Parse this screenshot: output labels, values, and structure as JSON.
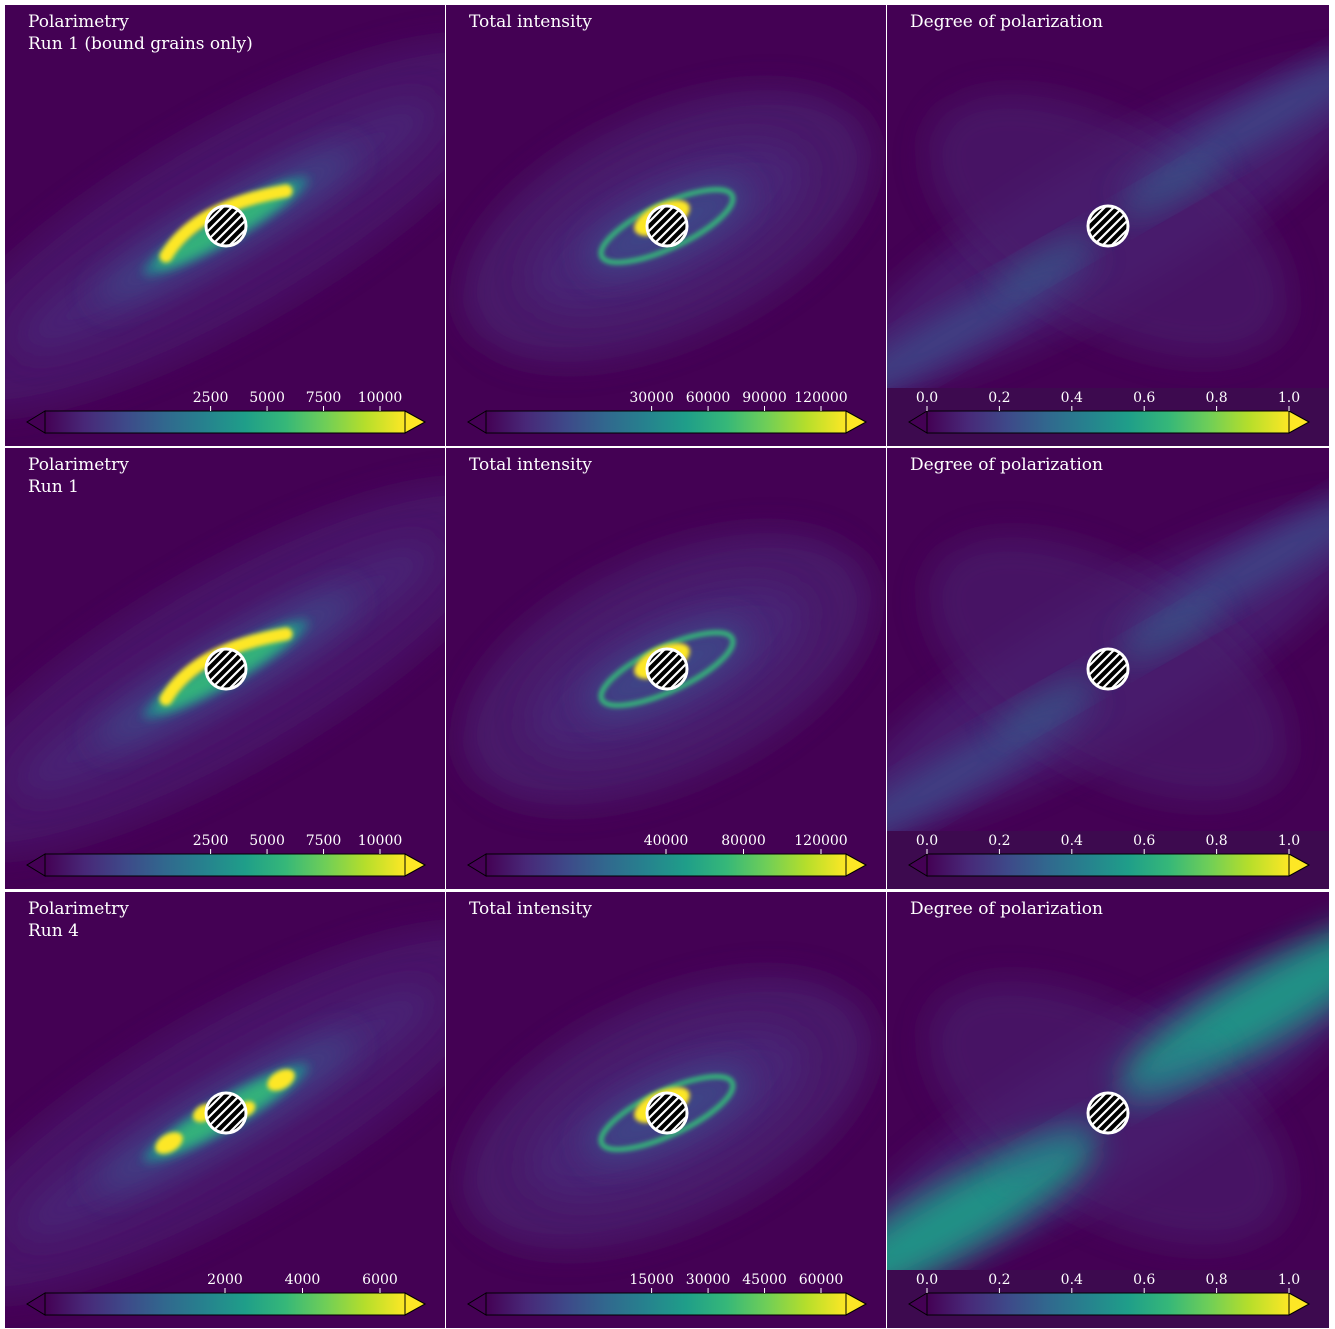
{
  "colormap": [
    "#440154",
    "#482878",
    "#3e4989",
    "#31688e",
    "#26828e",
    "#1f9e89",
    "#35b779",
    "#6ece58",
    "#b5de2b",
    "#fde725"
  ],
  "rows": [
    {
      "panels": [
        {
          "title_line1": "Polarimetry",
          "title_line2": "Run 1 (bound grains only)",
          "kind": "polarimetry",
          "colorbar": {
            "ticks": [
              "2500",
              "5000",
              "7500",
              "10000"
            ]
          }
        },
        {
          "title_line1": "Total intensity",
          "title_line2": "",
          "kind": "intensity",
          "colorbar": {
            "ticks": [
              "30000",
              "60000",
              "90000",
              "120000"
            ]
          }
        },
        {
          "title_line1": "Degree of polarization",
          "title_line2": "",
          "kind": "degree",
          "colorbar": {
            "ticks": [
              "0.0",
              "0.2",
              "0.4",
              "0.6",
              "0.8",
              "1.0"
            ]
          }
        }
      ]
    },
    {
      "panels": [
        {
          "title_line1": "Polarimetry",
          "title_line2": "Run 1",
          "kind": "polarimetry",
          "colorbar": {
            "ticks": [
              "2500",
              "5000",
              "7500",
              "10000"
            ]
          }
        },
        {
          "title_line1": "Total intensity",
          "title_line2": "",
          "kind": "intensity",
          "colorbar": {
            "ticks": [
              "40000",
              "80000",
              "120000"
            ]
          }
        },
        {
          "title_line1": "Degree of polarization",
          "title_line2": "",
          "kind": "degree",
          "colorbar": {
            "ticks": [
              "0.0",
              "0.2",
              "0.4",
              "0.6",
              "0.8",
              "1.0"
            ]
          }
        }
      ]
    },
    {
      "panels": [
        {
          "title_line1": "Polarimetry",
          "title_line2": "Run 4",
          "kind": "polarimetry-split",
          "colorbar": {
            "ticks": [
              "2000",
              "4000",
              "6000"
            ]
          }
        },
        {
          "title_line1": "Total intensity",
          "title_line2": "",
          "kind": "intensity",
          "colorbar": {
            "ticks": [
              "15000",
              "30000",
              "45000",
              "60000"
            ]
          }
        },
        {
          "title_line1": "Degree of polarization",
          "title_line2": "",
          "kind": "degree-strong",
          "colorbar": {
            "ticks": [
              "0.0",
              "0.2",
              "0.4",
              "0.6",
              "0.8",
              "1.0"
            ]
          }
        }
      ]
    }
  ]
}
